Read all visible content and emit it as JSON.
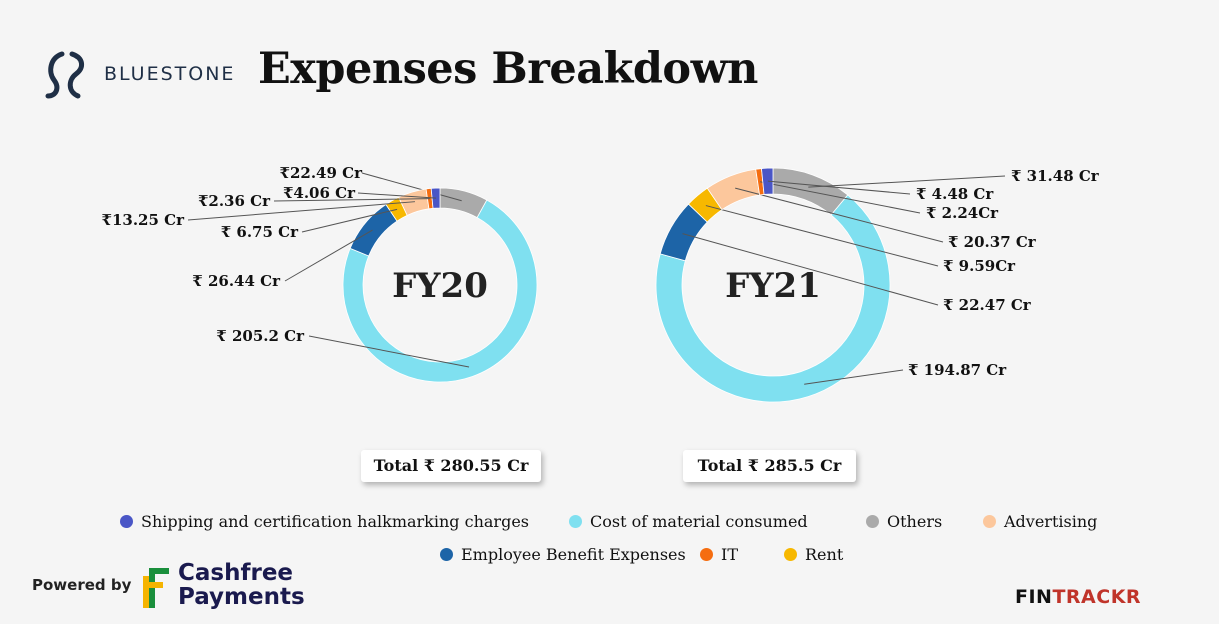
{
  "header": {
    "brand": "BLUESTONE",
    "title": "Expenses Breakdown"
  },
  "colors": {
    "Shipping and certification halkmarking charges": "#4a56c6",
    "Cost of material consumed": "#7fe0f0",
    "Others": "#aaaaaa",
    "Advertising": "#fcc79c",
    "Employee Benefit Expenses": "#1d64a7",
    "IT": "#f56d10",
    "Rent": "#f7b800"
  },
  "chart_data": [
    {
      "type": "pie",
      "variant": "donut",
      "center_label": "FY20",
      "total_label": "Total ₹ 280.55 Cr",
      "slices": [
        {
          "name": "Others",
          "value": 22.49,
          "label": "₹22.49 Cr"
        },
        {
          "name": "Cost of material consumed",
          "value": 205.2,
          "label": "₹ 205.2 Cr"
        },
        {
          "name": "Employee Benefit Expenses",
          "value": 26.44,
          "label": "₹ 26.44 Cr"
        },
        {
          "name": "Rent",
          "value": 6.75,
          "label": "₹ 6.75 Cr"
        },
        {
          "name": "Advertising",
          "value": 13.25,
          "label": "₹13.25 Cr"
        },
        {
          "name": "IT",
          "value": 2.36,
          "label": "₹2.36 Cr"
        },
        {
          "name": "Shipping and certification halkmarking charges",
          "value": 4.06,
          "label": "₹4.06 Cr"
        }
      ]
    },
    {
      "type": "pie",
      "variant": "donut",
      "center_label": "FY21",
      "total_label": "Total ₹ 285.5 Cr",
      "slices": [
        {
          "name": "Others",
          "value": 31.48,
          "label": "₹ 31.48 Cr"
        },
        {
          "name": "Cost of material consumed",
          "value": 194.87,
          "label": "₹ 194.87 Cr"
        },
        {
          "name": "Employee Benefit Expenses",
          "value": 22.47,
          "label": "₹ 22.47 Cr"
        },
        {
          "name": "Rent",
          "value": 9.59,
          "label": "₹ 9.59Cr"
        },
        {
          "name": "Advertising",
          "value": 20.37,
          "label": "₹ 20.37 Cr"
        },
        {
          "name": "IT",
          "value": 2.24,
          "label": "₹ 2.24Cr"
        },
        {
          "name": "Shipping and certification halkmarking charges",
          "value": 4.48,
          "label": "₹ 4.48 Cr"
        }
      ]
    }
  ],
  "legend": [
    "Shipping and certification halkmarking charges",
    "Cost of material consumed",
    "Others",
    "Advertising",
    "Employee Benefit Expenses",
    "IT",
    "Rent"
  ],
  "footer": {
    "powered_by": "Powered by",
    "cashfree_line1": "Cashfree",
    "cashfree_line2": "Payments",
    "fintrackr_fin": "FIN",
    "fintrackr_trackr": "TRACKR"
  }
}
